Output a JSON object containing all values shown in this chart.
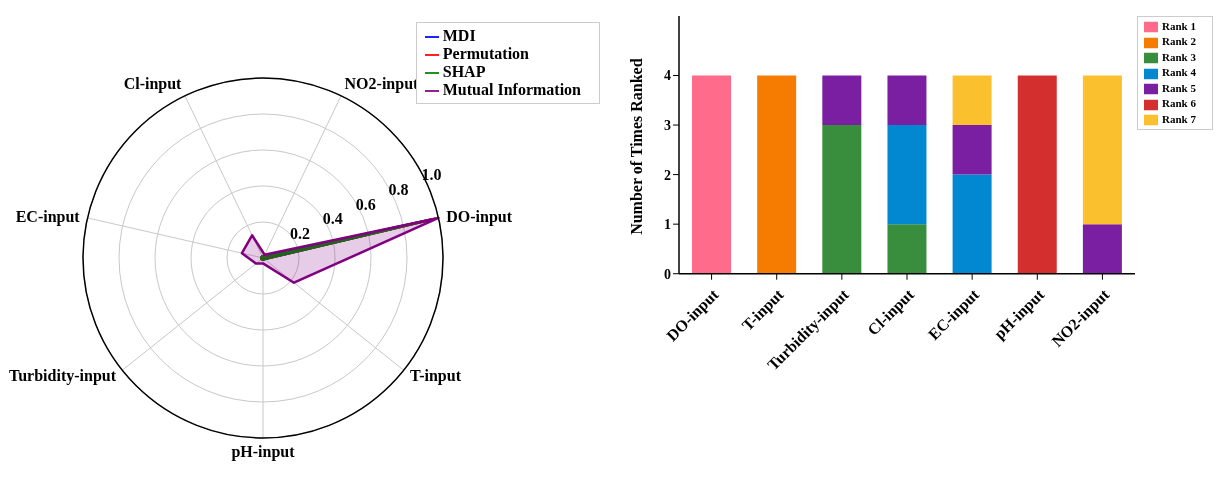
{
  "chart_data": [
    {
      "type": "radar",
      "categories": [
        "Cl-input",
        "NO2-input",
        "DO-input",
        "T-input",
        "pH-input",
        "Turbidity-input",
        "EC-input"
      ],
      "ylim": [
        0,
        1
      ],
      "yticks": [
        0.2,
        0.4,
        0.6,
        0.8,
        {
          "value": 1,
          "label": "1.0"
        }
      ],
      "grid": true,
      "legend": "top right",
      "series": [
        {
          "name": "MDI",
          "color": "#0000ff",
          "values": [
            0.01,
            0.01,
            0.97,
            0.01,
            0.01,
            0.01,
            0.01
          ]
        },
        {
          "name": "Permutation",
          "color": "#ff0000",
          "values": [
            0.01,
            0.01,
            0.98,
            0.01,
            0.01,
            0.01,
            0.01
          ]
        },
        {
          "name": "SHAP",
          "color": "#008000",
          "values": [
            0.01,
            0.01,
            0.95,
            0.01,
            0.01,
            0.01,
            0.01
          ]
        },
        {
          "name": "Mutual Information",
          "color": "#800080",
          "values": [
            0.14,
            0.02,
            1.0,
            0.22,
            0.03,
            0.05,
            0.12
          ]
        }
      ]
    },
    {
      "type": "bar",
      "stacked": true,
      "ylabel": "Number of Times Ranked",
      "categories": [
        "DO-input",
        "T-input",
        "Turbidity-input",
        "Cl-input",
        "EC-input",
        "pH-input",
        "NO2-input"
      ],
      "ylim": [
        0,
        5.2
      ],
      "yticks": [
        0,
        1,
        2,
        3,
        4
      ],
      "legend": "top right",
      "series": [
        {
          "name": "Rank 1",
          "color": "#ff6b8a",
          "values": [
            4,
            0,
            0,
            0,
            0,
            0,
            0
          ]
        },
        {
          "name": "Rank 2",
          "color": "#f57c00",
          "values": [
            0,
            4,
            0,
            0,
            0,
            0,
            0
          ]
        },
        {
          "name": "Rank 3",
          "color": "#388e3c",
          "values": [
            0,
            0,
            3,
            1,
            0,
            0,
            0
          ]
        },
        {
          "name": "Rank 4",
          "color": "#0288d1",
          "values": [
            0,
            0,
            0,
            2,
            2,
            0,
            0
          ]
        },
        {
          "name": "Rank 5",
          "color": "#7b1fa2",
          "values": [
            0,
            0,
            1,
            1,
            1,
            0,
            1
          ]
        },
        {
          "name": "Rank 6",
          "color": "#d32f2f",
          "values": [
            0,
            0,
            0,
            0,
            0,
            4,
            0
          ]
        },
        {
          "name": "Rank 7",
          "color": "#fbc02d",
          "values": [
            0,
            0,
            0,
            0,
            1,
            0,
            3
          ]
        }
      ]
    }
  ]
}
